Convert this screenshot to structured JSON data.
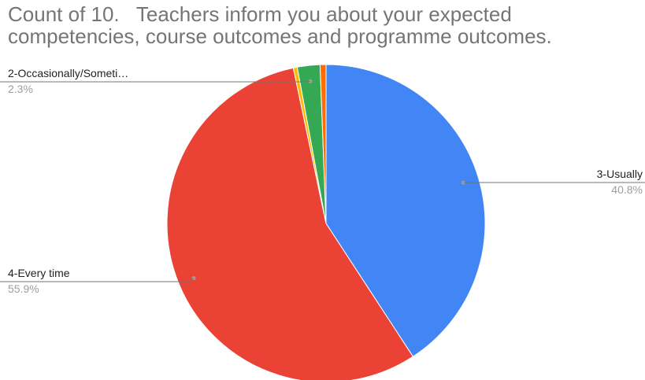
{
  "chart_data": {
    "type": "pie",
    "title": "Count of 10.   Teachers inform you about your expected competencies, course outcomes and programme outcomes.",
    "slices": [
      {
        "name": "3-Usually",
        "label": "3-Usually",
        "value": 40.8,
        "percent_label": "40.8%",
        "color": "#4285f4",
        "labeled": true
      },
      {
        "name": "4-Every time",
        "label": "4-Every time",
        "value": 55.9,
        "percent_label": "55.9%",
        "color": "#ea4335",
        "labeled": true
      },
      {
        "name": "slice-yellow",
        "label": "",
        "value": 0.4,
        "percent_label": "",
        "color": "#fbbc04",
        "labeled": false
      },
      {
        "name": "2-Occasionally/Sometimes",
        "label": "2-Occasionally/Someti…",
        "value": 2.3,
        "percent_label": "2.3%",
        "color": "#34a853",
        "labeled": true
      },
      {
        "name": "slice-orange",
        "label": "",
        "value": 0.6,
        "percent_label": "",
        "color": "#ff6d01",
        "labeled": false
      }
    ],
    "legend": "none"
  }
}
